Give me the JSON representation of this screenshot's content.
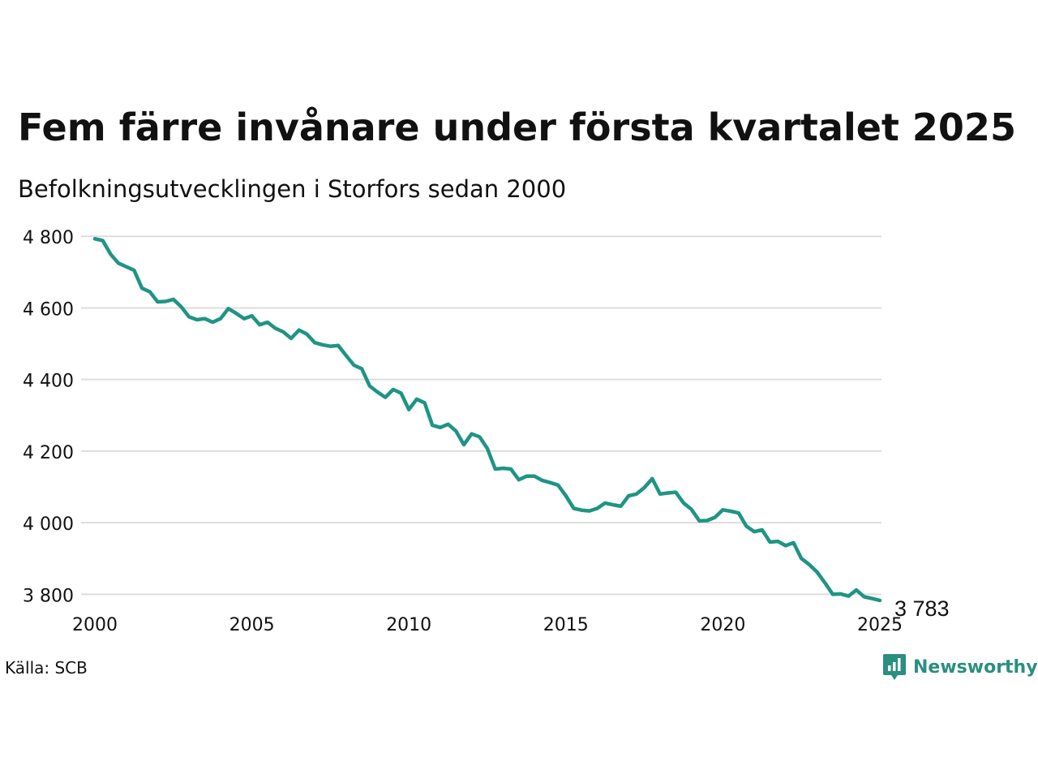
{
  "title": "Fem färre invånare under första kvartalet 2025",
  "subtitle": "Befolkningsutvecklingen i Storfors sedan 2000",
  "source": "Källa: SCB",
  "brand": "Newsworthy",
  "colors": {
    "line": "#1f9485",
    "grid": "#dddddd",
    "brand": "#2a8f80",
    "text": "#111111"
  },
  "chart_data": {
    "type": "line",
    "xlim": [
      2000,
      2025
    ],
    "ylim": [
      3760,
      4830
    ],
    "x_ticks": [
      2000,
      2005,
      2010,
      2015,
      2020,
      2025
    ],
    "x_tick_labels": [
      "2000",
      "2005",
      "2010",
      "2015",
      "2020",
      "2025"
    ],
    "y_ticks": [
      3800,
      4000,
      4200,
      4400,
      4600,
      4800
    ],
    "y_tick_labels": [
      "3 800",
      "4 000",
      "4 200",
      "4 400",
      "4 600",
      "4 800"
    ],
    "grid": "horizontal",
    "last_value_label": "3 783",
    "series": [
      {
        "points": [
          [
            2000.0,
            4793
          ],
          [
            2000.25,
            4788
          ],
          [
            2000.5,
            4750
          ],
          [
            2000.75,
            4725
          ],
          [
            2001.0,
            4715
          ],
          [
            2001.25,
            4705
          ],
          [
            2001.5,
            4655
          ],
          [
            2001.75,
            4645
          ],
          [
            2002.0,
            4617
          ],
          [
            2002.25,
            4618
          ],
          [
            2002.5,
            4624
          ],
          [
            2002.75,
            4603
          ],
          [
            2003.0,
            4575
          ],
          [
            2003.25,
            4567
          ],
          [
            2003.5,
            4570
          ],
          [
            2003.75,
            4560
          ],
          [
            2004.0,
            4570
          ],
          [
            2004.25,
            4598
          ],
          [
            2004.5,
            4585
          ],
          [
            2004.75,
            4570
          ],
          [
            2005.0,
            4578
          ],
          [
            2005.25,
            4553
          ],
          [
            2005.5,
            4560
          ],
          [
            2005.75,
            4543
          ],
          [
            2006.0,
            4533
          ],
          [
            2006.25,
            4515
          ],
          [
            2006.5,
            4538
          ],
          [
            2006.75,
            4527
          ],
          [
            2007.0,
            4503
          ],
          [
            2007.25,
            4497
          ],
          [
            2007.5,
            4493
          ],
          [
            2007.75,
            4495
          ],
          [
            2008.0,
            4467
          ],
          [
            2008.25,
            4440
          ],
          [
            2008.5,
            4430
          ],
          [
            2008.75,
            4382
          ],
          [
            2009.0,
            4365
          ],
          [
            2009.25,
            4350
          ],
          [
            2009.5,
            4372
          ],
          [
            2009.75,
            4362
          ],
          [
            2010.0,
            4316
          ],
          [
            2010.25,
            4345
          ],
          [
            2010.5,
            4335
          ],
          [
            2010.75,
            4272
          ],
          [
            2011.0,
            4266
          ],
          [
            2011.25,
            4275
          ],
          [
            2011.5,
            4256
          ],
          [
            2011.75,
            4218
          ],
          [
            2012.0,
            4248
          ],
          [
            2012.25,
            4240
          ],
          [
            2012.5,
            4207
          ],
          [
            2012.75,
            4150
          ],
          [
            2013.0,
            4152
          ],
          [
            2013.25,
            4150
          ],
          [
            2013.5,
            4120
          ],
          [
            2013.75,
            4130
          ],
          [
            2014.0,
            4130
          ],
          [
            2014.25,
            4118
          ],
          [
            2014.5,
            4112
          ],
          [
            2014.75,
            4105
          ],
          [
            2015.0,
            4075
          ],
          [
            2015.25,
            4040
          ],
          [
            2015.5,
            4035
          ],
          [
            2015.75,
            4033
          ],
          [
            2016.0,
            4040
          ],
          [
            2016.25,
            4055
          ],
          [
            2016.5,
            4050
          ],
          [
            2016.75,
            4046
          ],
          [
            2017.0,
            4075
          ],
          [
            2017.25,
            4080
          ],
          [
            2017.5,
            4098
          ],
          [
            2017.75,
            4123
          ],
          [
            2018.0,
            4080
          ],
          [
            2018.25,
            4083
          ],
          [
            2018.5,
            4085
          ],
          [
            2018.75,
            4055
          ],
          [
            2019.0,
            4037
          ],
          [
            2019.25,
            4005
          ],
          [
            2019.5,
            4006
          ],
          [
            2019.75,
            4015
          ],
          [
            2020.0,
            4036
          ],
          [
            2020.25,
            4032
          ],
          [
            2020.5,
            4027
          ],
          [
            2020.75,
            3990
          ],
          [
            2021.0,
            3975
          ],
          [
            2021.25,
            3980
          ],
          [
            2021.5,
            3946
          ],
          [
            2021.75,
            3948
          ],
          [
            2022.0,
            3936
          ],
          [
            2022.25,
            3944
          ],
          [
            2022.5,
            3900
          ],
          [
            2022.75,
            3883
          ],
          [
            2023.0,
            3862
          ],
          [
            2023.25,
            3832
          ],
          [
            2023.5,
            3800
          ],
          [
            2023.75,
            3801
          ],
          [
            2024.0,
            3795
          ],
          [
            2024.25,
            3812
          ],
          [
            2024.5,
            3793
          ],
          [
            2024.75,
            3788
          ],
          [
            2025.0,
            3783
          ]
        ]
      }
    ]
  }
}
